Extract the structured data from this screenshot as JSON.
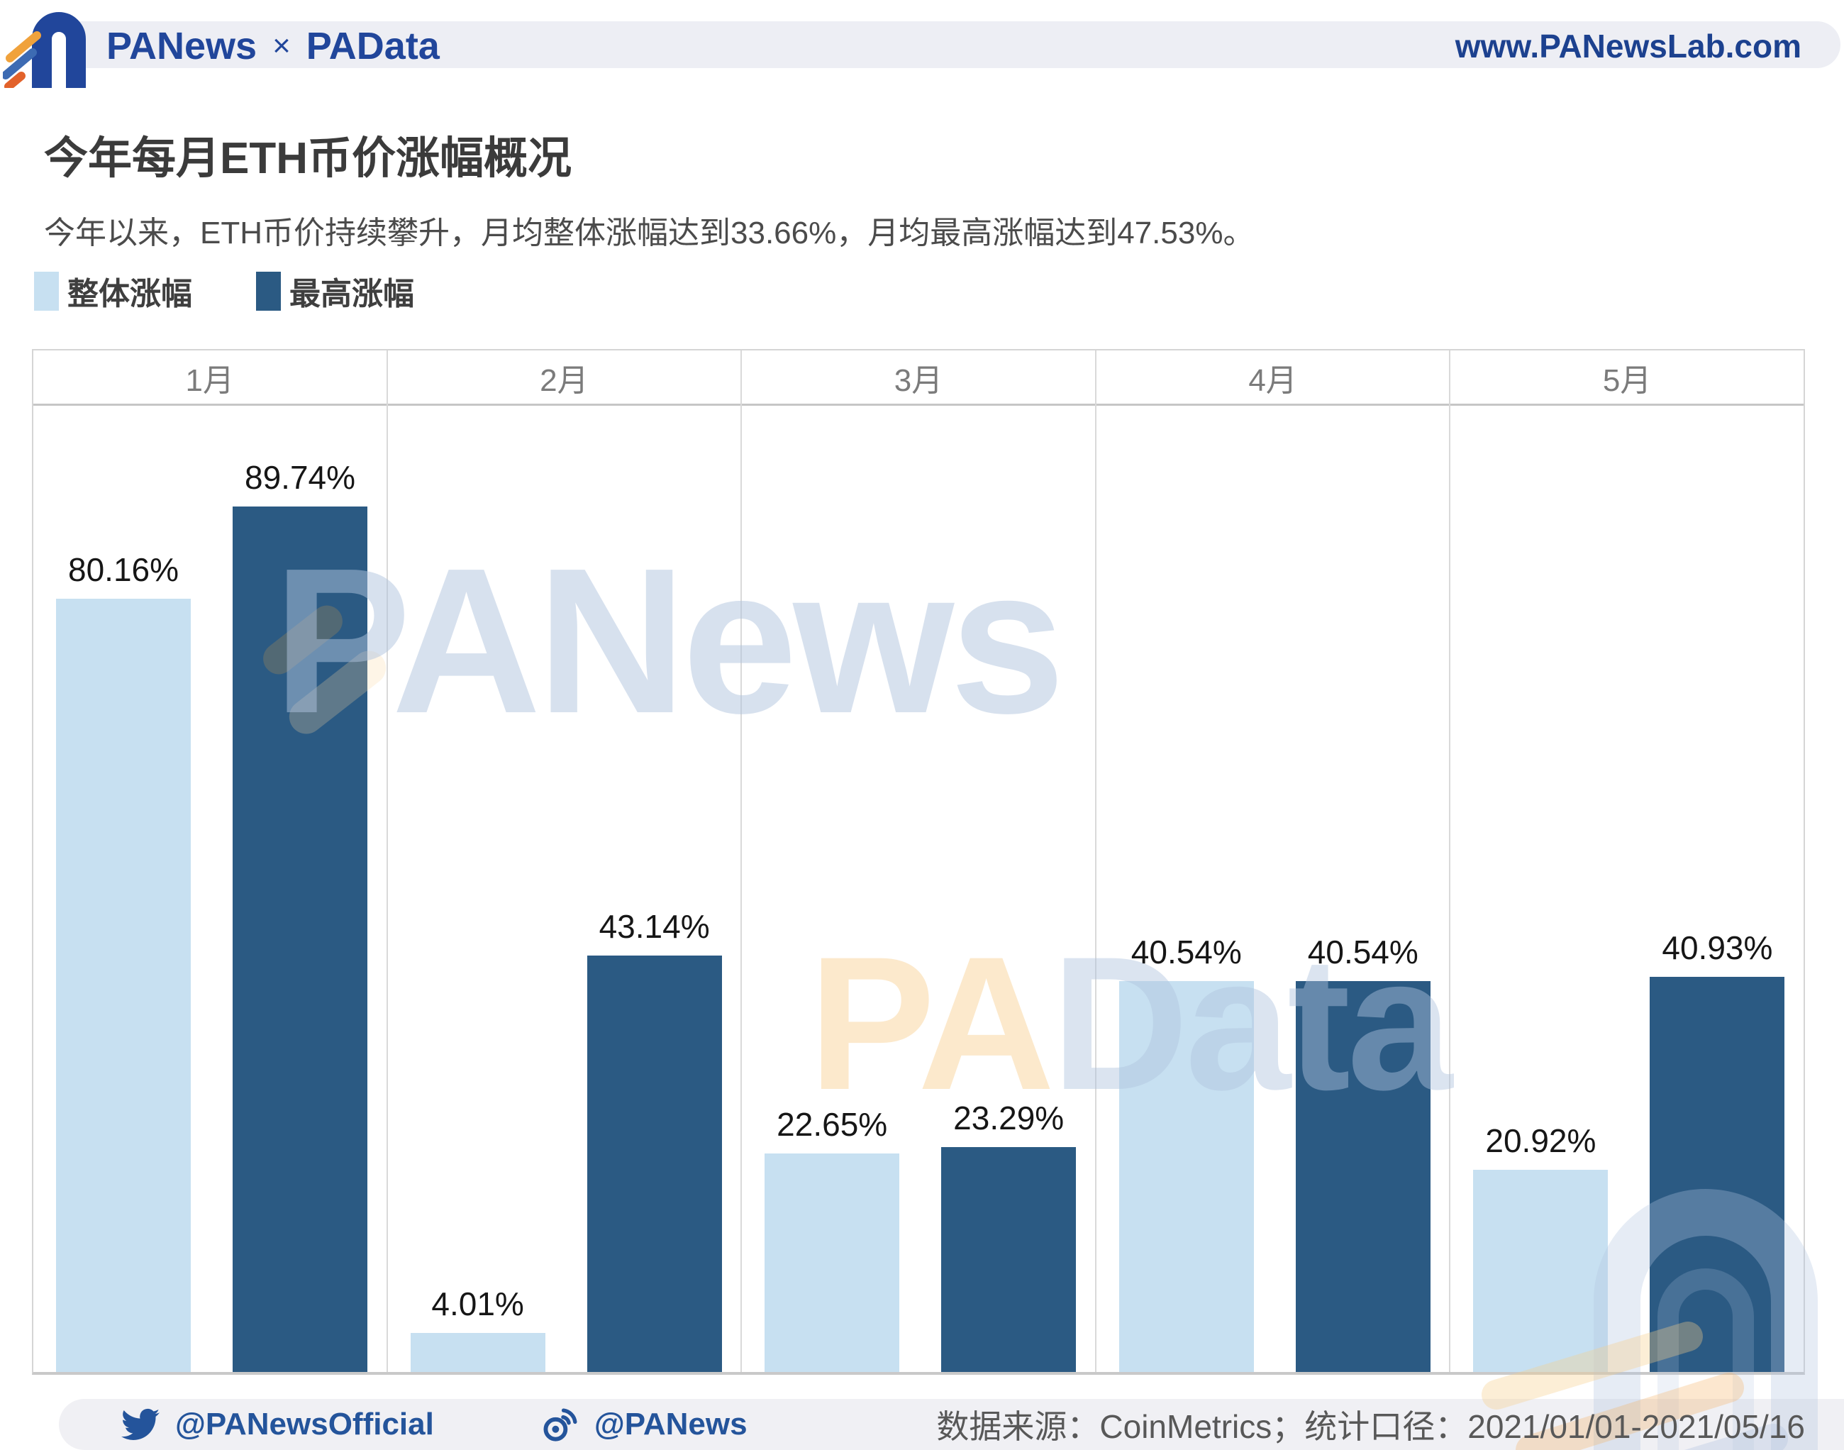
{
  "header": {
    "brand_left": "PANews",
    "brand_sep": "×",
    "brand_right": "PAData",
    "url": "www.PANewsLab.com"
  },
  "title": "今年每月ETH币价涨幅概况",
  "subtitle": "今年以来，ETH币价持续攀升，月均整体涨幅达到33.66%，月均最高涨幅达到47.53%。",
  "legend": [
    {
      "label": "整体涨幅",
      "color": "#C7E0F1"
    },
    {
      "label": "最高涨幅",
      "color": "#2B5A83"
    }
  ],
  "chart_data": {
    "type": "bar",
    "categories": [
      "1月",
      "2月",
      "3月",
      "4月",
      "5月"
    ],
    "series": [
      {
        "name": "整体涨幅",
        "color": "#C7E0F1",
        "values": [
          80.16,
          4.01,
          22.65,
          40.54,
          20.92
        ]
      },
      {
        "name": "最高涨幅",
        "color": "#2B5A83",
        "values": [
          89.74,
          43.14,
          23.29,
          40.54,
          40.93
        ]
      }
    ],
    "value_suffix": "%",
    "ylim": [
      0,
      100
    ],
    "grid": false,
    "legend_position": "top-left",
    "data_labels": true
  },
  "watermarks": {
    "center": "PANews",
    "lower_pa": "PA",
    "lower_data": "Data"
  },
  "footer": {
    "twitter_handle": "@PANewsOfficial",
    "weibo_handle": "@PANews",
    "source": "数据来源：CoinMetrics；统计口径：2021/01/01-2021/05/16"
  },
  "colors": {
    "brand_navy": "#21469B",
    "bar_light": "#C7E0F1",
    "bar_dark": "#2B5A83",
    "band_gray": "#EDEEF4"
  }
}
